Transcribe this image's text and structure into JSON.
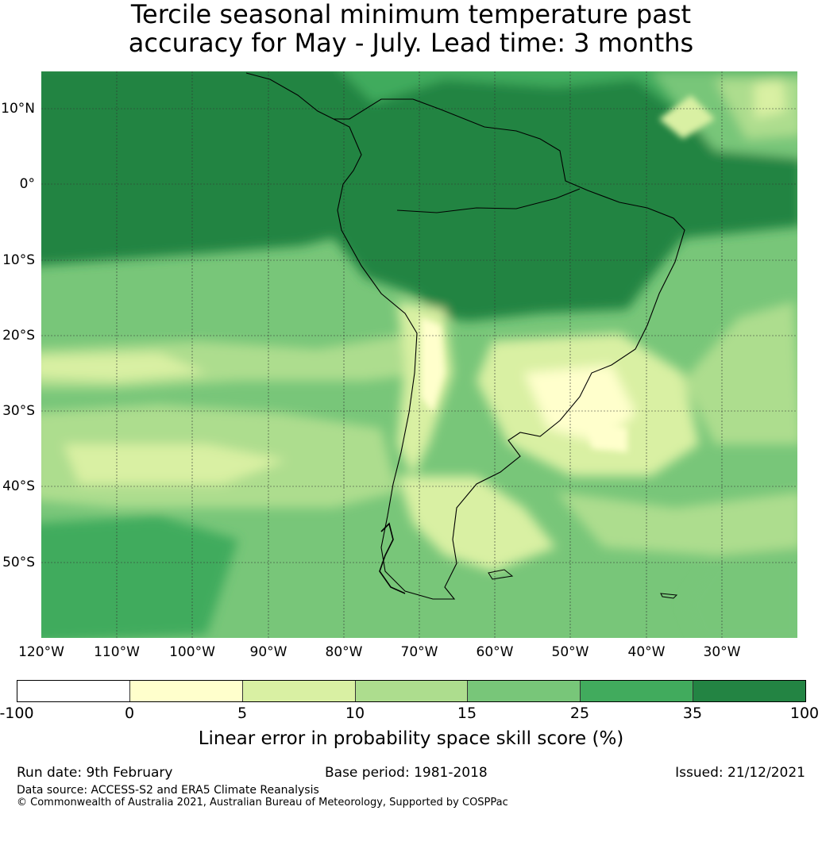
{
  "title": {
    "line1": "Tercile seasonal minimum temperature past",
    "line2": "accuracy for May - July. Lead time: 3 months"
  },
  "map": {
    "region": "South America and adjacent oceans",
    "lat_ticks": [
      "10°N",
      "0°",
      "10°S",
      "20°S",
      "30°S",
      "40°S",
      "50°S"
    ],
    "lon_ticks": [
      "120°W",
      "110°W",
      "100°W",
      "90°W",
      "80°W",
      "70°W",
      "60°W",
      "50°W",
      "40°W",
      "30°W"
    ],
    "extent": {
      "lon_range": [
        -120,
        -20
      ],
      "lat_range": [
        -60,
        15
      ]
    }
  },
  "colorbar": {
    "colors": [
      "#ffffff",
      "#ffffcc",
      "#d9f0a3",
      "#addd8e",
      "#78c679",
      "#41ab5d",
      "#238443"
    ],
    "ticks": [
      "-100",
      "0",
      "5",
      "10",
      "15",
      "25",
      "35",
      "100"
    ],
    "label": "Linear error in probability space skill score (%)"
  },
  "footer": {
    "run_date": "Run date: 9th February",
    "base_period": "Base period: 1981-2018",
    "issued": "Issued: 21/12/2021",
    "data_source": "Data source: ACCESS-S2 and ERA5 Climate Reanalysis",
    "copyright": "© Commonwealth of Australia 2021, Australian Bureau of Meteorology, Supported by COSPPac"
  }
}
